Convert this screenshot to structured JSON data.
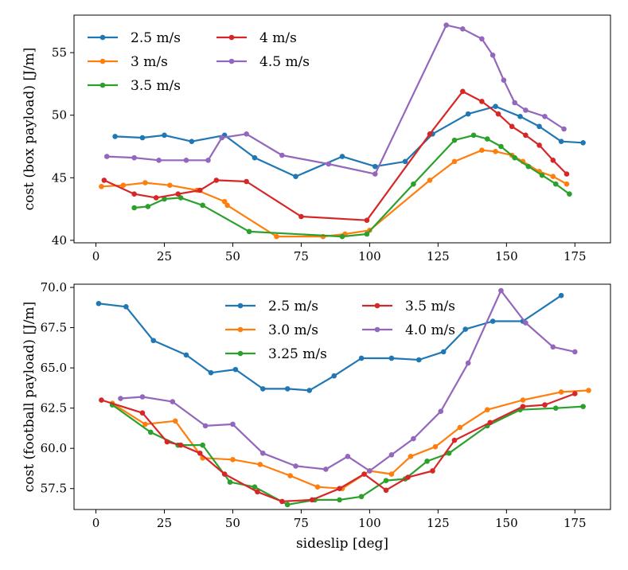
{
  "chart_data": [
    {
      "type": "line",
      "xlabel": "",
      "ylabel": "cost (box payload) [J/m]",
      "xlim": [
        -8,
        188
      ],
      "ylim": [
        39.8,
        58.0
      ],
      "xticks": [
        0,
        25,
        50,
        75,
        100,
        125,
        150,
        175
      ],
      "yticks": [
        40,
        45,
        50,
        55
      ],
      "legend": {
        "placement": "top-left",
        "columns": 2
      },
      "series": [
        {
          "name": "2.5 m/s",
          "color": "#1f77b4",
          "x": [
            7,
            17,
            25,
            35,
            47,
            58,
            73,
            90,
            102,
            113,
            123,
            136,
            146,
            155,
            162,
            170,
            178
          ],
          "y": [
            48.3,
            48.2,
            48.4,
            47.9,
            48.4,
            46.6,
            45.1,
            46.7,
            45.9,
            46.3,
            48.5,
            50.1,
            50.7,
            49.9,
            49.1,
            47.9,
            47.8
          ]
        },
        {
          "name": "3 m/s",
          "color": "#ff7f0e",
          "x": [
            2,
            10,
            18,
            27,
            37,
            47,
            48,
            66,
            83,
            91,
            100,
            122,
            131,
            141,
            146,
            152,
            156,
            162,
            167,
            172
          ],
          "y": [
            44.3,
            44.4,
            44.6,
            44.4,
            44.0,
            43.1,
            42.8,
            40.3,
            40.3,
            40.5,
            40.8,
            44.8,
            46.3,
            47.2,
            47.1,
            46.8,
            46.3,
            45.5,
            45.1,
            44.5
          ]
        },
        {
          "name": "3.5 m/s",
          "color": "#2ca02c",
          "x": [
            14,
            19,
            25,
            31,
            39,
            56,
            90,
            99,
            116,
            131,
            138,
            143,
            148,
            153,
            158,
            163,
            168,
            173
          ],
          "y": [
            42.6,
            42.7,
            43.3,
            43.4,
            42.8,
            40.7,
            40.3,
            40.5,
            44.5,
            48.0,
            48.4,
            48.1,
            47.5,
            46.6,
            45.9,
            45.2,
            44.5,
            43.7
          ]
        },
        {
          "name": "4 m/s",
          "color": "#d62728",
          "x": [
            3,
            14,
            22,
            30,
            38,
            44,
            55,
            75,
            99,
            122,
            134,
            141,
            147,
            152,
            157,
            162,
            167,
            172
          ],
          "y": [
            44.8,
            43.7,
            43.4,
            43.7,
            44.0,
            44.8,
            44.7,
            41.9,
            41.6,
            48.5,
            51.9,
            51.1,
            50.1,
            49.1,
            48.4,
            47.6,
            46.4,
            45.3
          ]
        },
        {
          "name": "4.5 m/s",
          "color": "#9467bd",
          "x": [
            4,
            14,
            23,
            33,
            41,
            46,
            55,
            68,
            85,
            102,
            128,
            134,
            141,
            145,
            149,
            153,
            157,
            164,
            171
          ],
          "y": [
            46.7,
            46.6,
            46.4,
            46.4,
            46.4,
            48.2,
            48.5,
            46.8,
            46.1,
            45.3,
            57.2,
            56.9,
            56.1,
            54.8,
            52.8,
            51.0,
            50.4,
            49.9,
            48.9
          ]
        }
      ]
    },
    {
      "type": "line",
      "xlabel": "sideslip [deg]",
      "ylabel": "cost (football payload) [J/m]",
      "xlim": [
        -8,
        188
      ],
      "ylim": [
        56.2,
        70.2
      ],
      "xticks": [
        0,
        25,
        50,
        75,
        100,
        125,
        150,
        175
      ],
      "yticks": [
        57.5,
        60.0,
        62.5,
        65.0,
        67.5,
        70.0
      ],
      "legend": {
        "placement": "top-center",
        "columns": 2
      },
      "series": [
        {
          "name": "2.5 m/s",
          "color": "#1f77b4",
          "x": [
            1,
            11,
            21,
            33,
            42,
            51,
            61,
            70,
            78,
            87,
            97,
            108,
            118,
            127,
            135,
            145,
            156,
            170
          ],
          "y": [
            69.0,
            68.8,
            66.7,
            65.8,
            64.7,
            64.9,
            63.7,
            63.7,
            63.6,
            64.5,
            65.6,
            65.6,
            65.5,
            66.0,
            67.4,
            67.9,
            67.9,
            69.5
          ]
        },
        {
          "name": "3.0 m/s",
          "color": "#ff7f0e",
          "x": [
            6,
            18,
            29,
            39,
            50,
            60,
            71,
            81,
            90,
            100,
            108,
            115,
            124,
            133,
            143,
            156,
            170,
            180
          ],
          "y": [
            62.8,
            61.5,
            61.7,
            59.4,
            59.3,
            59.0,
            58.3,
            57.6,
            57.5,
            58.6,
            58.4,
            59.5,
            60.1,
            61.3,
            62.4,
            63.0,
            63.5,
            63.6
          ]
        },
        {
          "name": "3.25 m/s",
          "color": "#2ca02c",
          "x": [
            6,
            20,
            30,
            39,
            49,
            58,
            70,
            80,
            89,
            97,
            106,
            113,
            121,
            129,
            143,
            155,
            168,
            178
          ],
          "y": [
            62.7,
            61.0,
            60.2,
            60.2,
            57.9,
            57.6,
            56.5,
            56.8,
            56.8,
            57.0,
            58.0,
            58.1,
            59.2,
            59.7,
            61.4,
            62.4,
            62.5,
            62.6
          ]
        },
        {
          "name": "3.5 m/s",
          "color": "#d62728",
          "x": [
            2,
            17,
            26,
            31,
            38,
            47,
            59,
            68,
            79,
            89,
            98,
            106,
            114,
            123,
            131,
            144,
            156,
            164,
            175
          ],
          "y": [
            63.0,
            62.2,
            60.4,
            60.2,
            59.7,
            58.4,
            57.3,
            56.7,
            56.8,
            57.5,
            58.4,
            57.4,
            58.2,
            58.6,
            60.5,
            61.6,
            62.6,
            62.7,
            63.4
          ]
        },
        {
          "name": "4.0 m/s",
          "color": "#9467bd",
          "x": [
            9,
            17,
            28,
            40,
            50,
            61,
            73,
            84,
            92,
            100,
            108,
            116,
            126,
            136,
            148,
            157,
            167,
            175
          ],
          "y": [
            63.1,
            63.2,
            62.9,
            61.4,
            61.5,
            59.7,
            58.9,
            58.7,
            59.5,
            58.6,
            59.6,
            60.6,
            62.3,
            65.3,
            69.8,
            67.8,
            66.3,
            66.0
          ]
        }
      ]
    }
  ]
}
